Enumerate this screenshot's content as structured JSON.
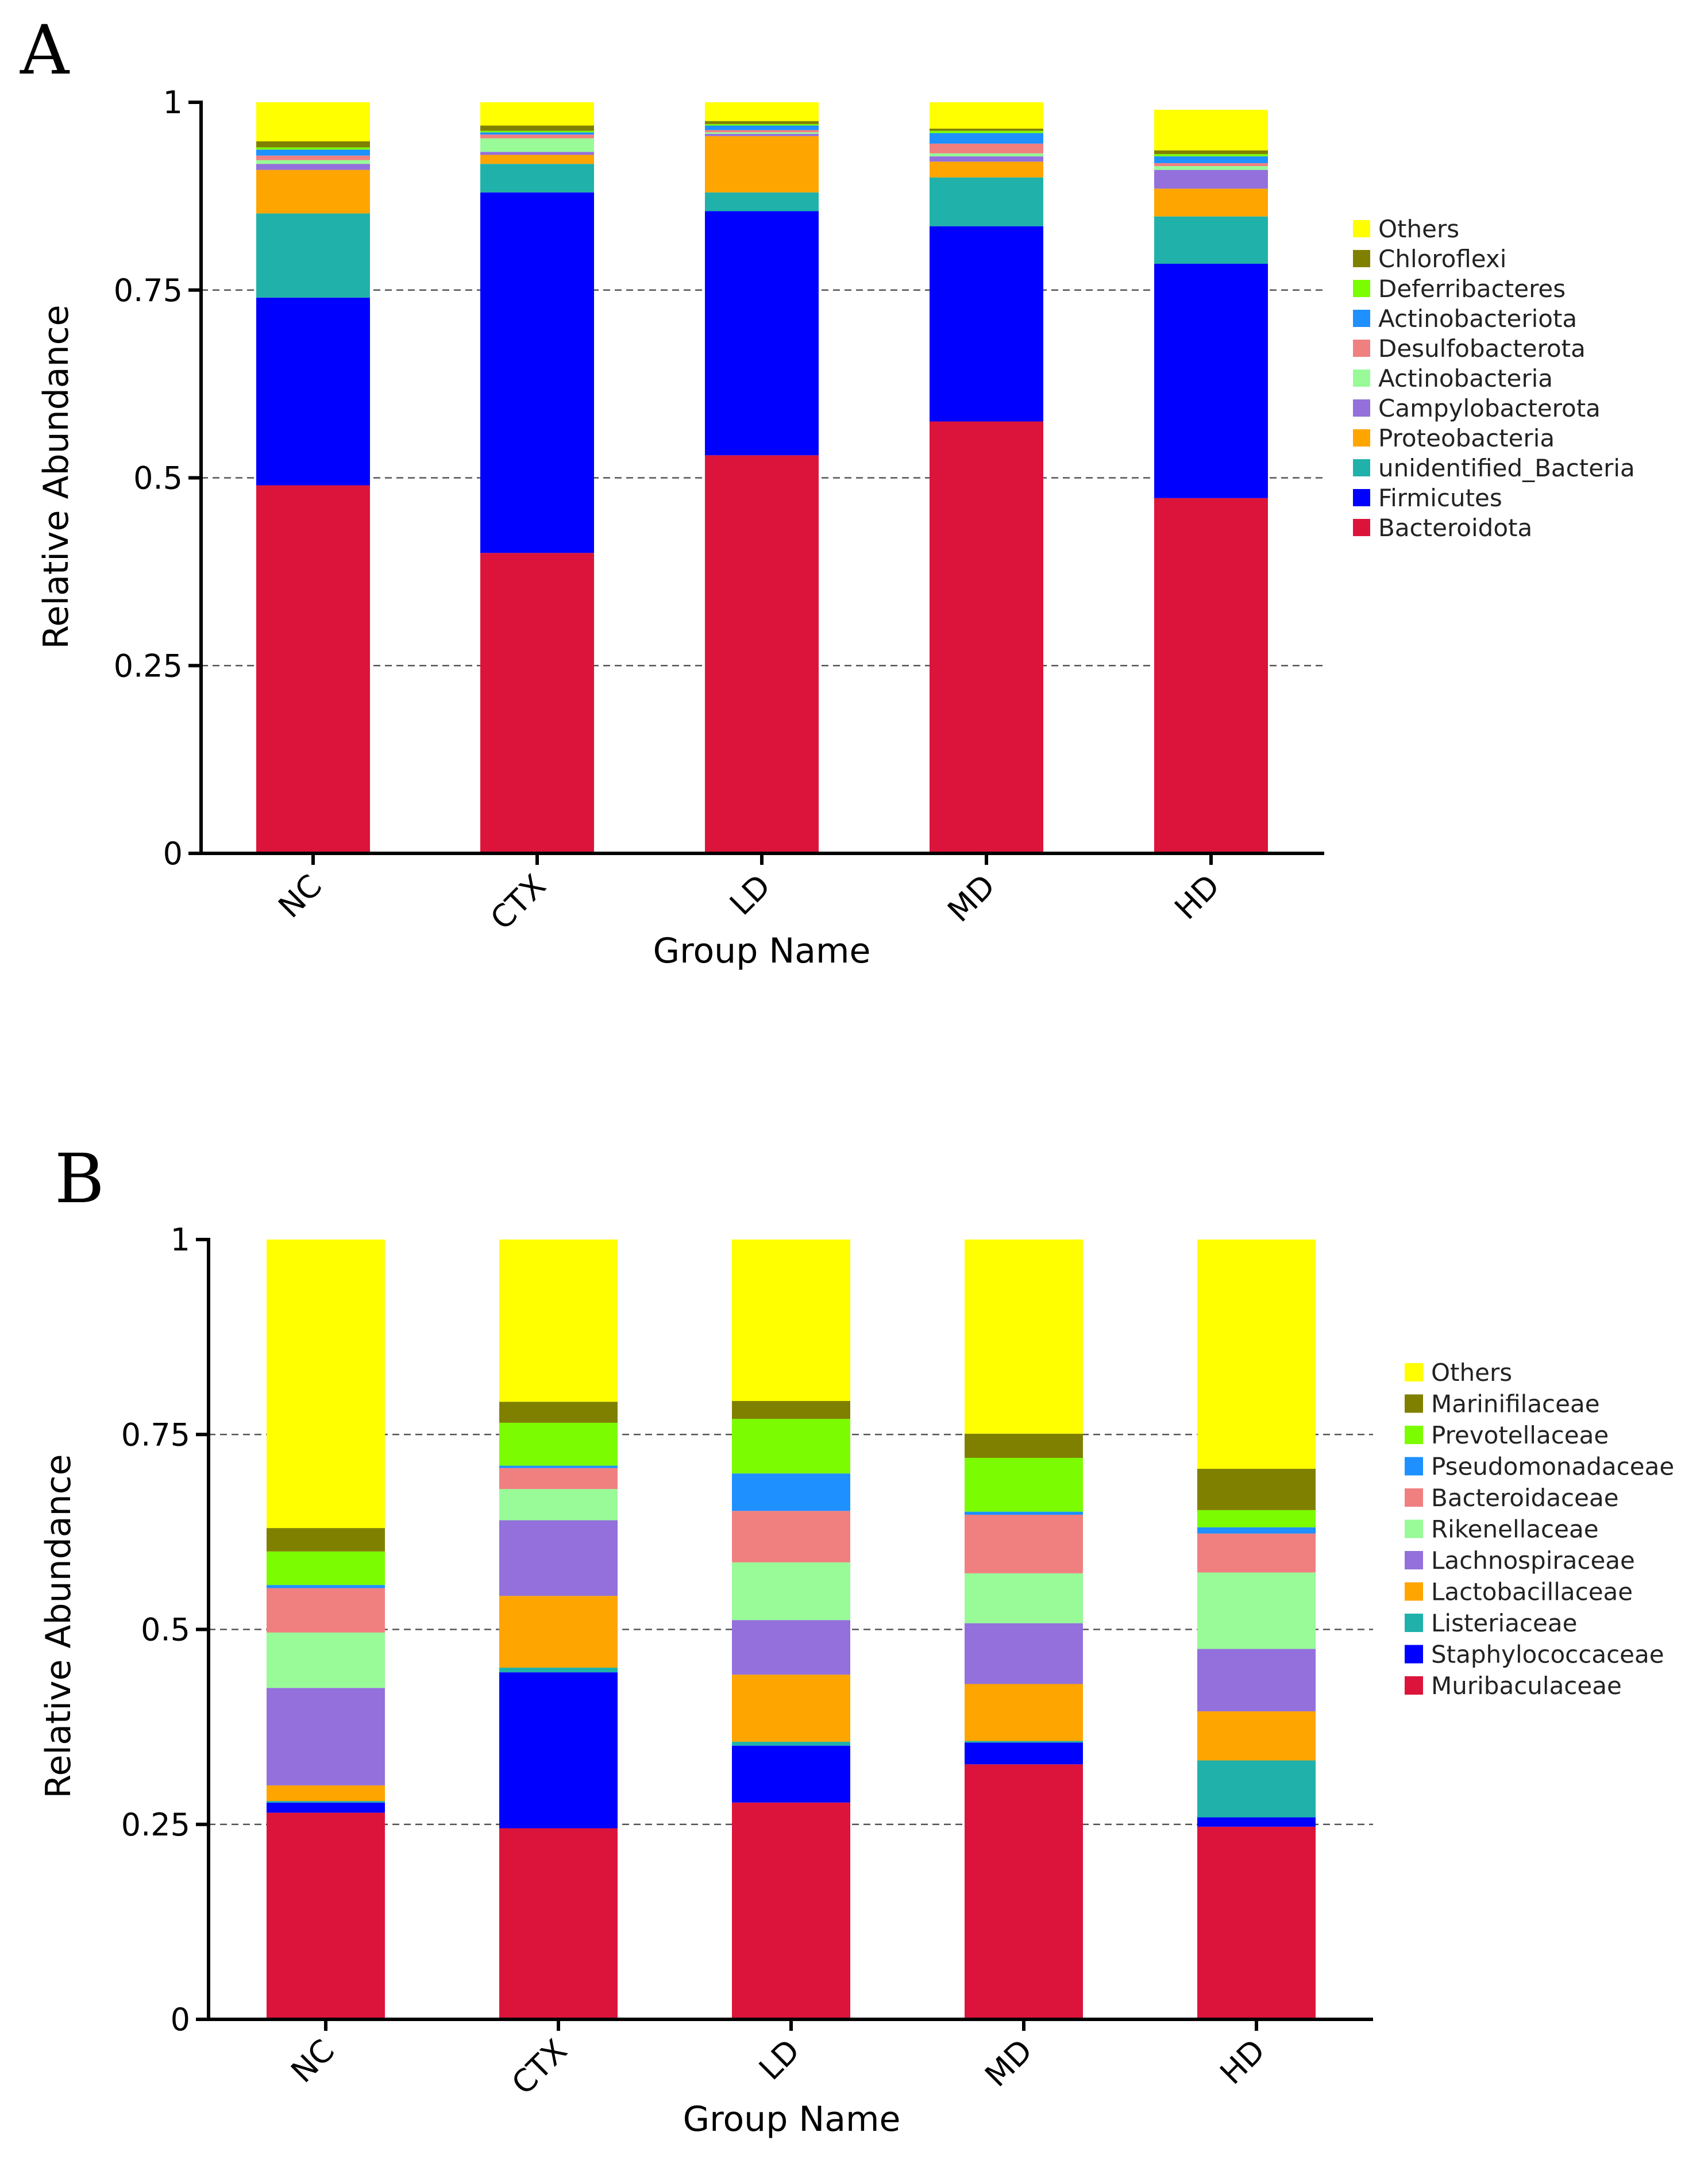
{
  "panels": [
    {
      "label": "A",
      "chart_data": {
        "type": "bar",
        "stacked": true,
        "title": "",
        "xlabel": "Group Name",
        "ylabel": "Relative Abundance",
        "ylim": [
          0,
          1
        ],
        "yticks": [
          0,
          0.25,
          0.5,
          0.75,
          1
        ],
        "ytick_labels": [
          "0",
          "0.25",
          "0.5",
          "0.75",
          "1"
        ],
        "grid": "dashed horizontal",
        "legend_position": "right",
        "categories": [
          "NC",
          "CTX",
          "LD",
          "MD",
          "HD"
        ],
        "series": [
          {
            "name": "Bacteroidota",
            "color": "#DC143C",
            "values": [
              0.49,
              0.4,
              0.53,
              0.575,
              0.473
            ]
          },
          {
            "name": "Firmicutes",
            "color": "#0000FF",
            "values": [
              0.25,
              0.48,
              0.325,
              0.26,
              0.312
            ]
          },
          {
            "name": "unidentified_Bacteria",
            "color": "#20B2AA",
            "values": [
              0.112,
              0.038,
              0.025,
              0.065,
              0.063
            ]
          },
          {
            "name": "Proteobacteria",
            "color": "#FFA500",
            "values": [
              0.058,
              0.012,
              0.075,
              0.021,
              0.037
            ]
          },
          {
            "name": "Campylobacterota",
            "color": "#9370DB",
            "values": [
              0.008,
              0.004,
              0.003,
              0.007,
              0.025
            ]
          },
          {
            "name": "Actinobacteria",
            "color": "#98FB98",
            "values": [
              0.005,
              0.018,
              0.002,
              0.004,
              0.005
            ]
          },
          {
            "name": "Desulfobacterota",
            "color": "#F08080",
            "values": [
              0.006,
              0.005,
              0.003,
              0.013,
              0.004
            ]
          },
          {
            "name": "Actinobacteriota",
            "color": "#1E90FF",
            "values": [
              0.008,
              0.003,
              0.006,
              0.014,
              0.009
            ]
          },
          {
            "name": "Deferribacteres",
            "color": "#7CFC00",
            "values": [
              0.003,
              0.002,
              0.002,
              0.003,
              0.003
            ]
          },
          {
            "name": "Chloroflexi",
            "color": "#808000",
            "values": [
              0.008,
              0.007,
              0.004,
              0.003,
              0.005
            ]
          },
          {
            "name": "Others",
            "color": "#FFFF00",
            "values": [
              0.052,
              0.031,
              0.025,
              0.035,
              0.054
            ]
          }
        ]
      }
    },
    {
      "label": "B",
      "chart_data": {
        "type": "bar",
        "stacked": true,
        "title": "",
        "xlabel": "Group Name",
        "ylabel": "Relative Abundance",
        "ylim": [
          0,
          1
        ],
        "yticks": [
          0,
          0.25,
          0.5,
          0.75,
          1
        ],
        "ytick_labels": [
          "0",
          "0.25",
          "0.5",
          "0.75",
          "1"
        ],
        "grid": "dashed horizontal",
        "legend_position": "right",
        "categories": [
          "NC",
          "CTX",
          "LD",
          "MD",
          "HD"
        ],
        "series": [
          {
            "name": "Muribaculaceae",
            "color": "#DC143C",
            "values": [
              0.265,
              0.245,
              0.278,
              0.327,
              0.247
            ]
          },
          {
            "name": "Staphylococcaceae",
            "color": "#0000FF",
            "values": [
              0.013,
              0.2,
              0.073,
              0.028,
              0.012
            ]
          },
          {
            "name": "Listeriaceae",
            "color": "#20B2AA",
            "values": [
              0.002,
              0.006,
              0.005,
              0.002,
              0.073
            ]
          },
          {
            "name": "Lactobacillaceae",
            "color": "#FFA500",
            "values": [
              0.02,
              0.092,
              0.086,
              0.073,
              0.063
            ]
          },
          {
            "name": "Lachnospiraceae",
            "color": "#9370DB",
            "values": [
              0.125,
              0.097,
              0.07,
              0.078,
              0.08
            ]
          },
          {
            "name": "Rikenellaceae",
            "color": "#98FB98",
            "values": [
              0.071,
              0.04,
              0.074,
              0.064,
              0.098
            ]
          },
          {
            "name": "Bacteroidaceae",
            "color": "#F08080",
            "values": [
              0.057,
              0.027,
              0.066,
              0.075,
              0.05
            ]
          },
          {
            "name": "Pseudomonadaceae",
            "color": "#1E90FF",
            "values": [
              0.004,
              0.003,
              0.048,
              0.004,
              0.008
            ]
          },
          {
            "name": "Prevotellaceae",
            "color": "#7CFC00",
            "values": [
              0.043,
              0.055,
              0.07,
              0.069,
              0.022
            ]
          },
          {
            "name": "Marinifilaceae",
            "color": "#808000",
            "values": [
              0.03,
              0.027,
              0.023,
              0.031,
              0.053
            ]
          },
          {
            "name": "Others",
            "color": "#FFFF00",
            "values": [
              0.37,
              0.208,
              0.207,
              0.249,
              0.294
            ]
          }
        ]
      }
    }
  ]
}
